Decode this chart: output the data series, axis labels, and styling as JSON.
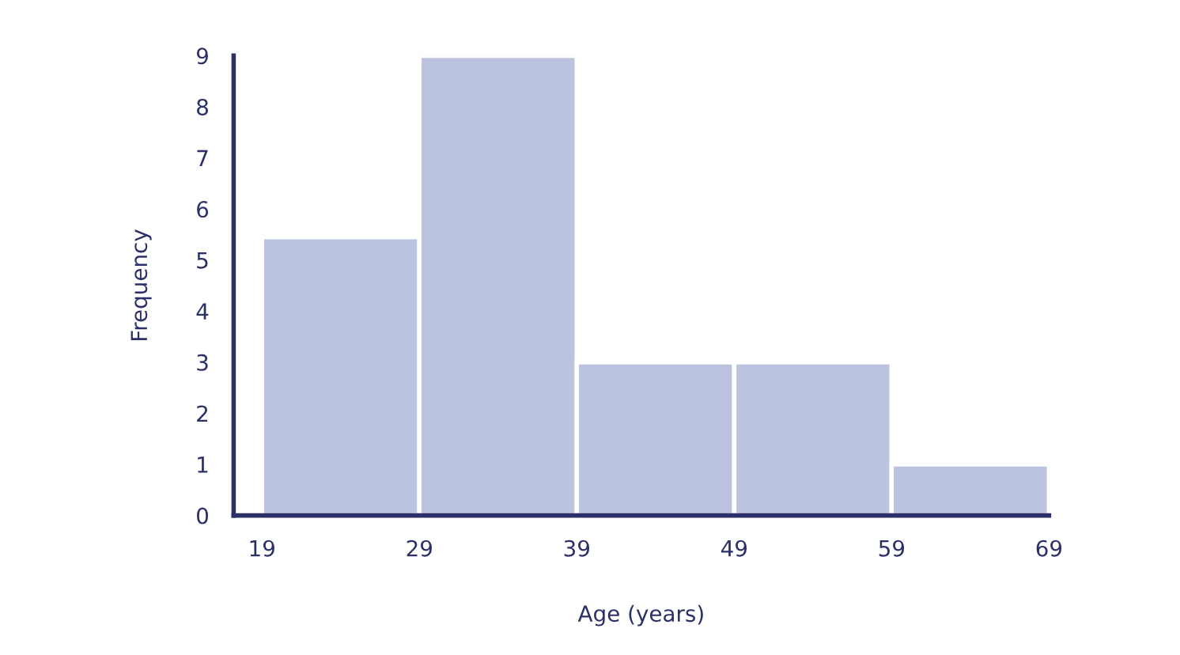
{
  "chart_data": {
    "type": "histogram",
    "xlabel": "Age (years)",
    "ylabel": "Frequency",
    "bins": [
      19,
      29,
      39,
      49,
      59,
      69
    ],
    "values": [
      5.45,
      9,
      3,
      3,
      1
    ],
    "color": "#bcc3de",
    "xlim": [
      17.2,
      69
    ],
    "xticks": [
      19,
      29,
      39,
      49,
      59,
      69
    ],
    "ylim": [
      0,
      9
    ],
    "yticks": [
      0,
      1,
      2,
      3,
      4,
      5,
      6,
      7,
      8,
      9
    ],
    "grid": false
  }
}
